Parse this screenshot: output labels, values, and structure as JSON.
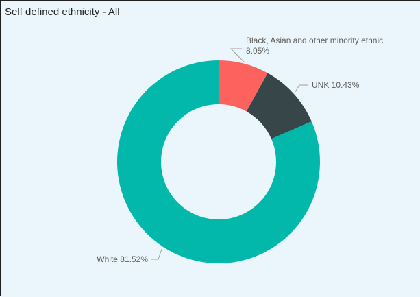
{
  "visual": {
    "title": "Self defined ethnicity - All"
  },
  "chart_data": {
    "type": "pie",
    "variant": "donut",
    "title": "Self defined ethnicity - All",
    "legend": "none",
    "slices": [
      {
        "name": "Black, Asian and other minority ethnic",
        "value": 8.05,
        "label": "8.05%",
        "color": "#fd625e"
      },
      {
        "name": "UNK",
        "value": 10.43,
        "label": "UNK 10.43%",
        "color": "#374649"
      },
      {
        "name": "White",
        "value": 81.52,
        "label": "White 81.52%",
        "color": "#01b8aa"
      }
    ]
  }
}
